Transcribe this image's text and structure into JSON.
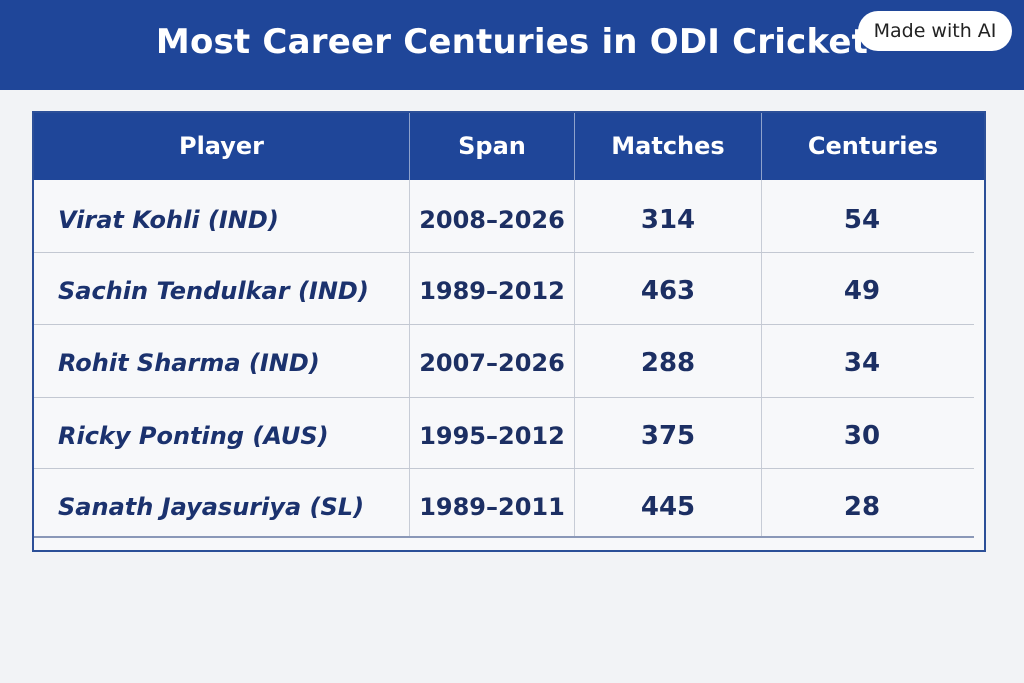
{
  "header": {
    "title": "Most Career Centuries in ODI Cricket",
    "badge": "Made with AI"
  },
  "table": {
    "columns": [
      "Player",
      "Span",
      "Matches",
      "Centuries"
    ],
    "rows": [
      {
        "player": "Virat Kohli (IND)",
        "span": "2008–2026",
        "matches": "314",
        "centuries": "54"
      },
      {
        "player": "Sachin Tendulkar (IND)",
        "span": "1989–2012",
        "matches": "463",
        "centuries": "49"
      },
      {
        "player": "Rohit Sharma (IND)",
        "span": "2007–2026",
        "matches": "288",
        "centuries": "34"
      },
      {
        "player": "Ricky Ponting (AUS)",
        "span": "1995–2012",
        "matches": "375",
        "centuries": "30"
      },
      {
        "player": "Sanath Jayasuriya (SL)",
        "span": "1989–2011",
        "matches": "445",
        "centuries": "28"
      }
    ]
  }
}
